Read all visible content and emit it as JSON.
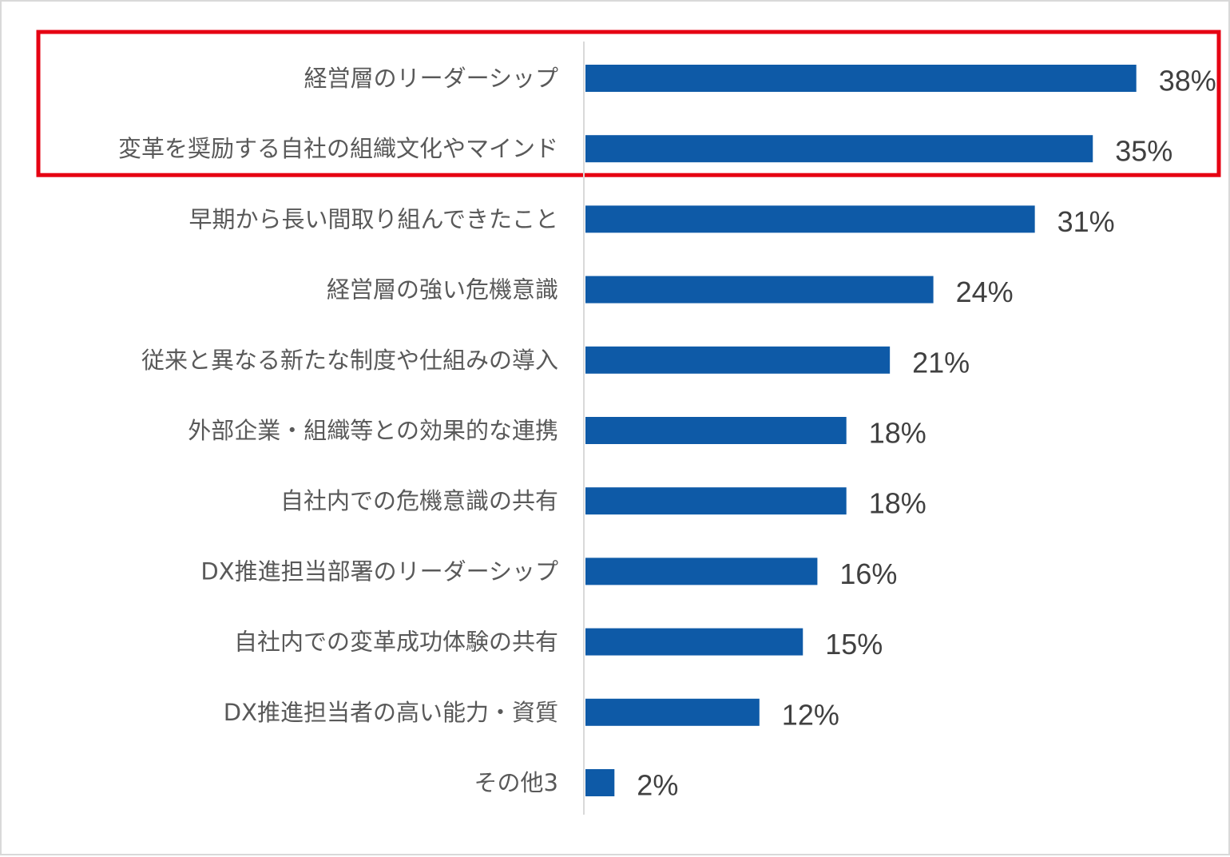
{
  "chart_data": {
    "type": "bar",
    "orientation": "horizontal",
    "categories": [
      "経営層のリーダーシップ",
      "変革を奨励する自社の組織文化やマインド",
      "早期から長い間取り組んできたこと",
      "経営層の強い危機意識",
      "従来と異なる新たな制度や仕組みの導入",
      "外部企業・組織等との効果的な連携",
      "自社内での危機意識の共有",
      "DX推進担当部署のリーダーシップ",
      "自社内での変革成功体験の共有",
      "DX推進担当者の高い能力・資質",
      "その他3"
    ],
    "values": [
      38,
      35,
      31,
      24,
      21,
      18,
      18,
      16,
      15,
      12,
      2
    ],
    "value_labels": [
      "38%",
      "35%",
      "31%",
      "24%",
      "21%",
      "18%",
      "18%",
      "16%",
      "15%",
      "12%",
      "2%"
    ],
    "highlight": {
      "categories": [
        0,
        1
      ],
      "color": "#e60012"
    },
    "bar_color": "#0e5aa7",
    "axis_color": "#d9d9d9",
    "grid": false,
    "legend": "none",
    "xlim": [
      0,
      38
    ]
  }
}
